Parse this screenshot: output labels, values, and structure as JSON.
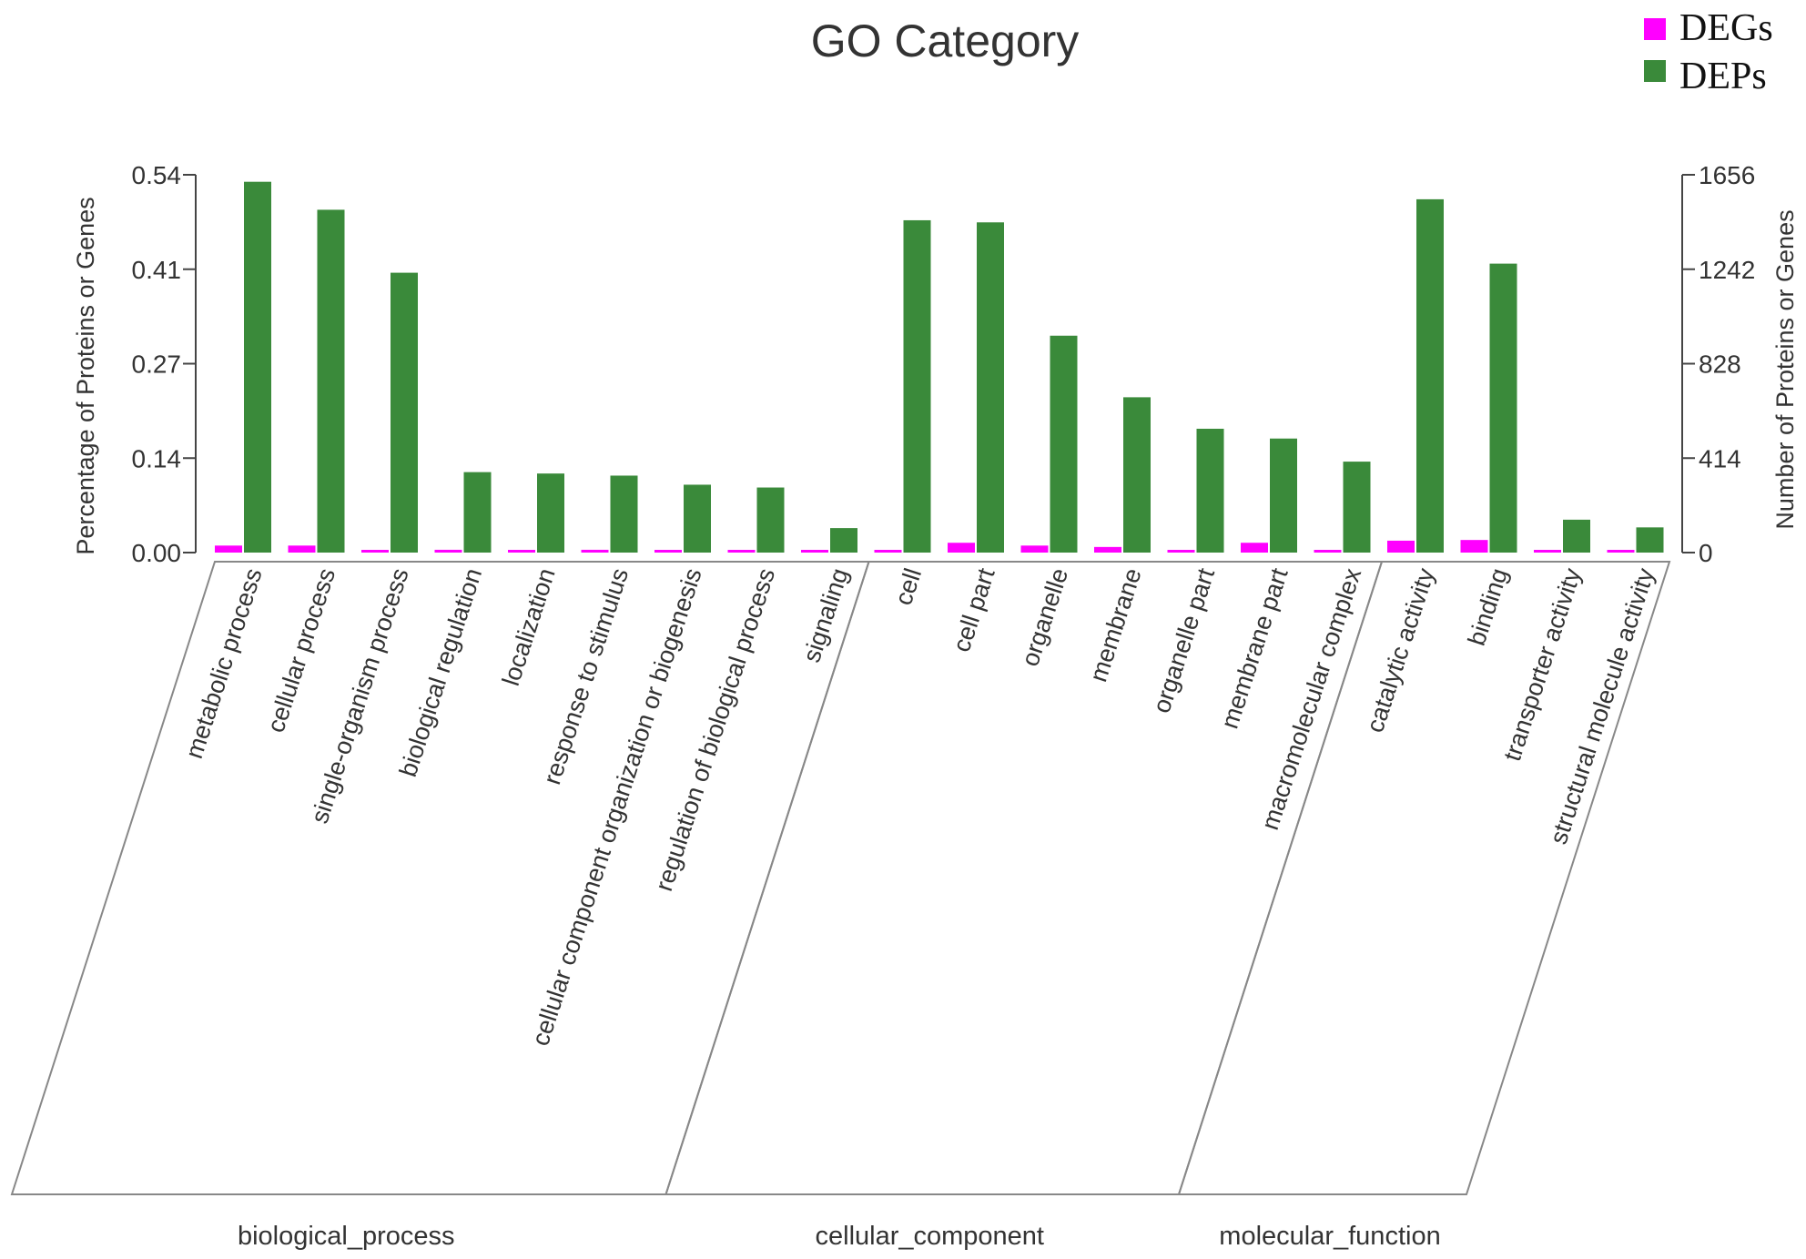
{
  "chart_data": {
    "type": "bar",
    "title": "GO Category",
    "ylabel": "Percentage of Proteins or Genes",
    "ylabel_right": "Number of Proteins or Genes",
    "ylim": [
      0,
      0.54
    ],
    "ylim_right": [
      0,
      1656
    ],
    "yticks": [
      "0.00",
      "0.14",
      "0.27",
      "0.41",
      "0.54"
    ],
    "yticks_right": [
      "0",
      "414",
      "828",
      "1242",
      "1656"
    ],
    "legend_position": "top-right",
    "categories": [
      "metabolic process",
      "cellular process",
      "single-organism process",
      "biological regulation",
      "localization",
      "response to stimulus",
      "cellular component organization or biogenesis",
      "regulation of biological process",
      "signaling",
      "cell",
      "cell part",
      "organelle",
      "membrane",
      "organelle part",
      "membrane part",
      "macromolecular complex",
      "catalytic activity",
      "binding",
      "transporter activity",
      "structural molecule activity"
    ],
    "groups": [
      {
        "name": "biological_process",
        "count": 9
      },
      {
        "name": "cellular_component",
        "count": 7
      },
      {
        "name": "molecular_function",
        "count": 4
      }
    ],
    "series": [
      {
        "name": "DEGs",
        "color": "#ff00ff",
        "values": [
          0.01,
          0.01,
          0.0,
          0.004,
          0.003,
          0.004,
          0.002,
          0.0,
          0.0,
          0.0,
          0.014,
          0.01,
          0.008,
          0.002,
          0.014,
          0.002,
          0.017,
          0.018,
          0.003,
          0.0
        ]
      },
      {
        "name": "DEPs",
        "color": "#3a8a3a",
        "values": [
          0.53,
          0.49,
          0.4,
          0.115,
          0.113,
          0.11,
          0.097,
          0.093,
          0.035,
          0.475,
          0.472,
          0.31,
          0.222,
          0.177,
          0.163,
          0.13,
          0.505,
          0.413,
          0.047,
          0.036
        ]
      }
    ]
  }
}
